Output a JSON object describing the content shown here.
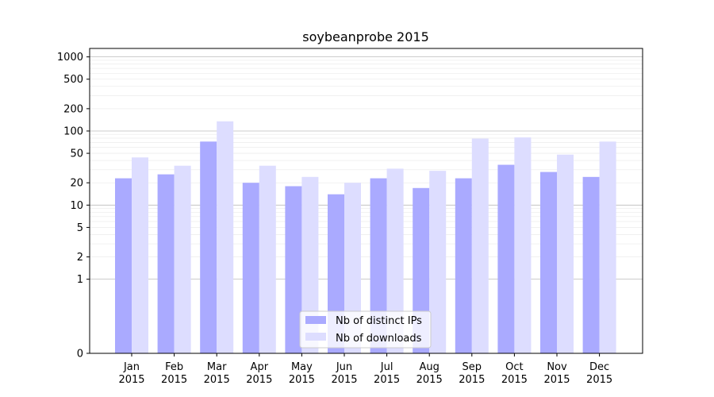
{
  "chart_data": {
    "type": "bar",
    "title": "soybeanprobe 2015",
    "xlabel": "",
    "ylabel": "",
    "yscale": "symlog",
    "ylim": [
      0,
      1300
    ],
    "yticks": [
      0,
      1,
      2,
      5,
      10,
      20,
      50,
      100,
      200,
      500,
      1000
    ],
    "grid": true,
    "legend_position": "lower center",
    "categories": [
      [
        "Jan",
        "2015"
      ],
      [
        "Feb",
        "2015"
      ],
      [
        "Mar",
        "2015"
      ],
      [
        "Apr",
        "2015"
      ],
      [
        "May",
        "2015"
      ],
      [
        "Jun",
        "2015"
      ],
      [
        "Jul",
        "2015"
      ],
      [
        "Aug",
        "2015"
      ],
      [
        "Sep",
        "2015"
      ],
      [
        "Oct",
        "2015"
      ],
      [
        "Nov",
        "2015"
      ],
      [
        "Dec",
        "2015"
      ]
    ],
    "series": [
      {
        "name": "Nb of distinct IPs",
        "color": "#aaaaff",
        "values": [
          23,
          26,
          72,
          20,
          18,
          14,
          23,
          17,
          23,
          35,
          28,
          24
        ]
      },
      {
        "name": "Nb of downloads",
        "color": "#ddddff",
        "values": [
          44,
          34,
          135,
          34,
          24,
          20,
          31,
          29,
          79,
          82,
          48,
          72
        ]
      }
    ]
  }
}
